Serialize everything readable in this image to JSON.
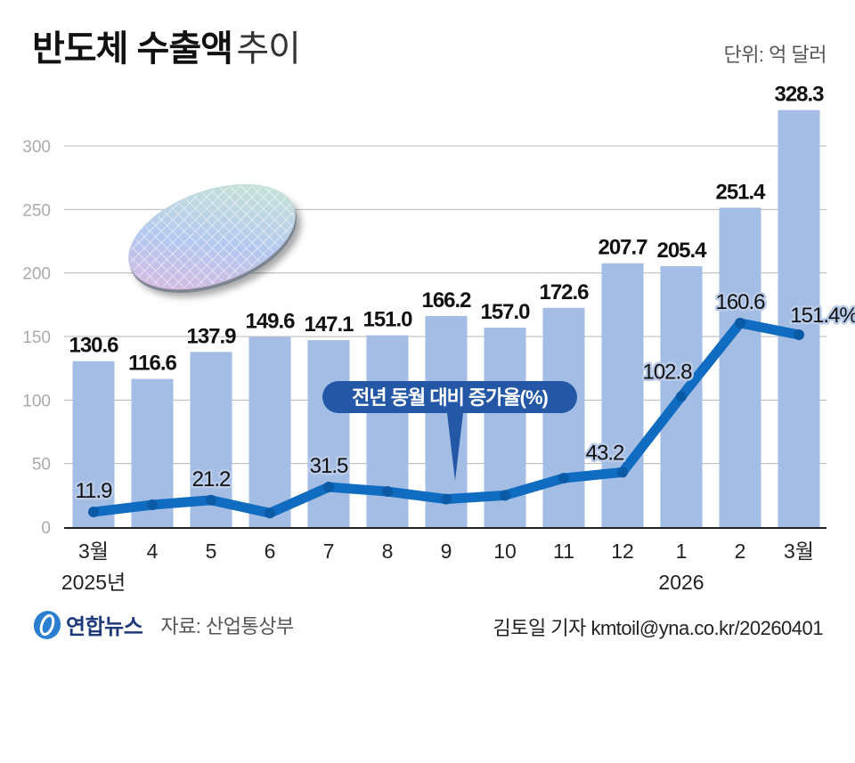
{
  "header": {
    "title_bold": "반도체 수출액",
    "title_light": "추이",
    "unit": "단위: 억 달러"
  },
  "footer": {
    "brand": "연합뉴스",
    "source": "자료: 산업통상부",
    "credit": "김토일 기자 kmtoil@yna.co.kr/20260401"
  },
  "colors": {
    "bar": "#a3bde4",
    "line": "#0f6cc0",
    "callout": "#2458a6",
    "grid": "#9a9a9a",
    "axis": "#222222"
  },
  "chart_data": {
    "type": "bar",
    "title": "반도체 수출액 추이",
    "unit": "억 달러",
    "categories": [
      "3월",
      "4",
      "5",
      "6",
      "7",
      "8",
      "9",
      "10",
      "11",
      "12",
      "1",
      "2",
      "3월"
    ],
    "year_labels": [
      {
        "index": 0,
        "label": "2025년"
      },
      {
        "index": 10,
        "label": "2026"
      }
    ],
    "ylim": [
      0,
      300
    ],
    "yticks": [
      0,
      50,
      100,
      150,
      200,
      250,
      300
    ],
    "grid": true,
    "series": [
      {
        "name": "반도체 수출액",
        "type": "bar",
        "values": [
          130.6,
          116.6,
          137.9,
          149.6,
          147.1,
          151.0,
          166.2,
          157.0,
          172.6,
          207.7,
          205.4,
          251.4,
          328.3
        ],
        "labels": [
          "130.6",
          "116.6",
          "137.9",
          "149.6",
          "147.1",
          "151.0",
          "166.2",
          "157.0",
          "172.6",
          "207.7",
          "205.4",
          "251.4",
          "328.3"
        ]
      },
      {
        "name": "전년 동월 대비 증가율(%)",
        "type": "line",
        "values": [
          11.9,
          17.5,
          21.2,
          11.0,
          31.5,
          28.0,
          22.0,
          25.0,
          38.5,
          43.2,
          102.8,
          160.6,
          151.4
        ],
        "labels": [
          "11.9",
          "",
          "21.2",
          "",
          "31.5",
          "",
          "",
          "",
          "",
          "43.2",
          "102.8",
          "160.6",
          "151.4%"
        ]
      }
    ],
    "annotations": [
      {
        "text": "전년 동월 대비 증가율(%)",
        "points_to_index": 6
      }
    ]
  }
}
